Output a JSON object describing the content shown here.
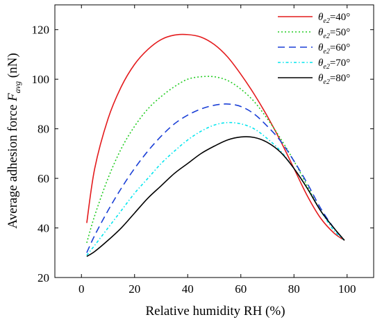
{
  "chart_data": {
    "type": "line",
    "xlabel": "Relative humidity RH (%)",
    "ylabel": "Average adhesion force F_avg (nN)",
    "ylabel_parts": {
      "prefix": "Average adhesion force ",
      "var": "F",
      "sub": "avg",
      "suffix": " (nN)"
    },
    "xlim": [
      -10,
      110
    ],
    "ylim": [
      20,
      130
    ],
    "xticks": [
      0,
      20,
      40,
      60,
      80,
      100
    ],
    "yticks": [
      20,
      40,
      60,
      80,
      100,
      120
    ],
    "grid": false,
    "legend_position": "top-right",
    "x": [
      2,
      5,
      10,
      15,
      20,
      25,
      30,
      35,
      40,
      45,
      50,
      55,
      60,
      65,
      70,
      75,
      80,
      85,
      90,
      95,
      99
    ],
    "series": [
      {
        "name": "θe2=40°",
        "label_var": "θ",
        "label_sub": "e2",
        "label_val": "=40°",
        "color": "#e41a1c",
        "dash": "solid",
        "values": [
          42,
          64,
          84,
          97,
          106,
          112,
          116,
          117.8,
          118,
          117,
          114,
          109,
          102,
          94,
          85,
          75,
          64,
          53,
          44,
          38,
          35
        ]
      },
      {
        "name": "θe2=50°",
        "label_var": "θ",
        "label_sub": "e2",
        "label_val": "=50°",
        "color": "#22cc22",
        "dash": "dotted",
        "values": [
          34,
          45,
          60,
          72,
          81,
          88,
          93,
          97,
          100,
          101,
          101,
          99.5,
          96,
          91,
          84,
          76,
          67,
          57,
          47,
          40,
          35
        ]
      },
      {
        "name": "θe2=60°",
        "label_var": "θ",
        "label_sub": "e2",
        "label_val": "=60°",
        "color": "#1a3fd6",
        "dash": "dashed",
        "values": [
          30,
          37,
          47,
          56,
          64,
          71,
          77,
          82,
          85.5,
          88,
          89.5,
          90,
          89,
          86,
          81,
          75,
          67,
          58,
          48,
          40,
          35
        ]
      },
      {
        "name": "θe2=70°",
        "label_var": "θ",
        "label_sub": "e2",
        "label_val": "=70°",
        "color": "#00e5ee",
        "dash": "dashdot",
        "values": [
          29,
          33,
          40,
          47,
          54,
          60,
          66,
          71,
          75.5,
          79,
          81.5,
          82.5,
          82,
          80,
          76,
          71,
          64,
          56,
          47,
          39,
          35
        ]
      },
      {
        "name": "θe2=80°",
        "label_var": "θ",
        "label_sub": "e2",
        "label_val": "=80°",
        "color": "#000000",
        "dash": "solid",
        "values": [
          28.5,
          30.5,
          35,
          40,
          46,
          52,
          57,
          62,
          66,
          70,
          73,
          75.5,
          76.7,
          76.5,
          74.5,
          70.5,
          64,
          56,
          47,
          40,
          35
        ]
      }
    ]
  }
}
